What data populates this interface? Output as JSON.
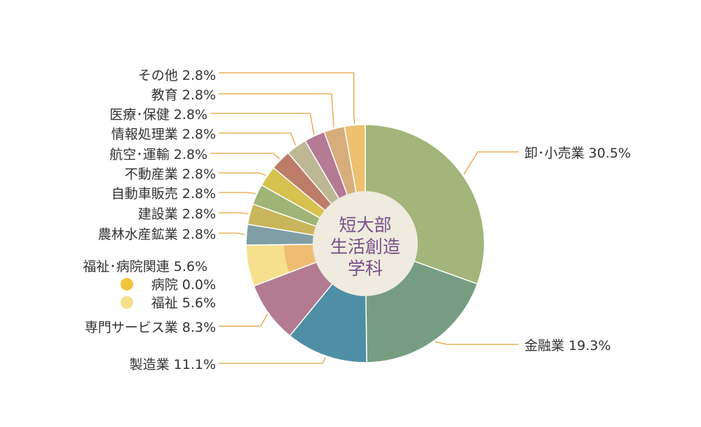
{
  "chart_data": {
    "type": "pie",
    "center_label": [
      "短大部",
      "生活創造",
      "学科"
    ],
    "slices": [
      {
        "label": "卸・小売業",
        "value": 30.5,
        "color": "#a3b57a"
      },
      {
        "label": "金融業",
        "value": 19.3,
        "color": "#769d82"
      },
      {
        "label": "製造業",
        "value": 11.1,
        "color": "#4e8fa6"
      },
      {
        "label": "専門サービス業",
        "value": 8.3,
        "color": "#b27b92"
      },
      {
        "label": "福祉・病院関連",
        "value": 5.6,
        "color": "#f7e08d",
        "inner": [
          {
            "label": "病院",
            "value": 0.0,
            "color": "#f1c43d"
          },
          {
            "label": "福祉",
            "value": 5.6,
            "color": "#f7e08d"
          }
        ]
      },
      {
        "label": "農林水産鉱業",
        "value": 2.8,
        "color": "#7f9fa5"
      },
      {
        "label": "建設業",
        "value": 2.8,
        "color": "#c9b65a"
      },
      {
        "label": "自動車販売",
        "value": 2.8,
        "color": "#9fb476"
      },
      {
        "label": "不動産業",
        "value": 2.8,
        "color": "#d7c14f"
      },
      {
        "label": "航空・運輸",
        "value": 2.8,
        "color": "#bd7c68"
      },
      {
        "label": "情報処理業",
        "value": 2.8,
        "color": "#bdb893"
      },
      {
        "label": "医療・保健",
        "value": 2.8,
        "color": "#b57a94"
      },
      {
        "label": "教育",
        "value": 2.8,
        "color": "#d7ad7c"
      },
      {
        "label": "その他",
        "value": 2.8,
        "color": "#efc070"
      }
    ],
    "label_texts": {
      "wholesale": "卸･小売業 30.5%",
      "finance": "金融業 19.3%",
      "manufacturing": "製造業 11.1%",
      "professional": "専門サービス業 8.3%",
      "welfare_hospital": "福祉･病院関連 5.6%",
      "hospital": "病院 0.0%",
      "welfare": "福祉 5.6%",
      "agri": "農林水産鉱業 2.8%",
      "construction": "建設業 2.8%",
      "auto": "自動車販売 2.8%",
      "realestate": "不動産業 2.8%",
      "transport": "航空･運輸 2.8%",
      "it": "情報処理業 2.8%",
      "medical": "医療･保健 2.8%",
      "education": "教育 2.8%",
      "other": "その他 2.8%"
    },
    "leader_color": "#e8a03c",
    "center_fill": "#efebdf"
  }
}
